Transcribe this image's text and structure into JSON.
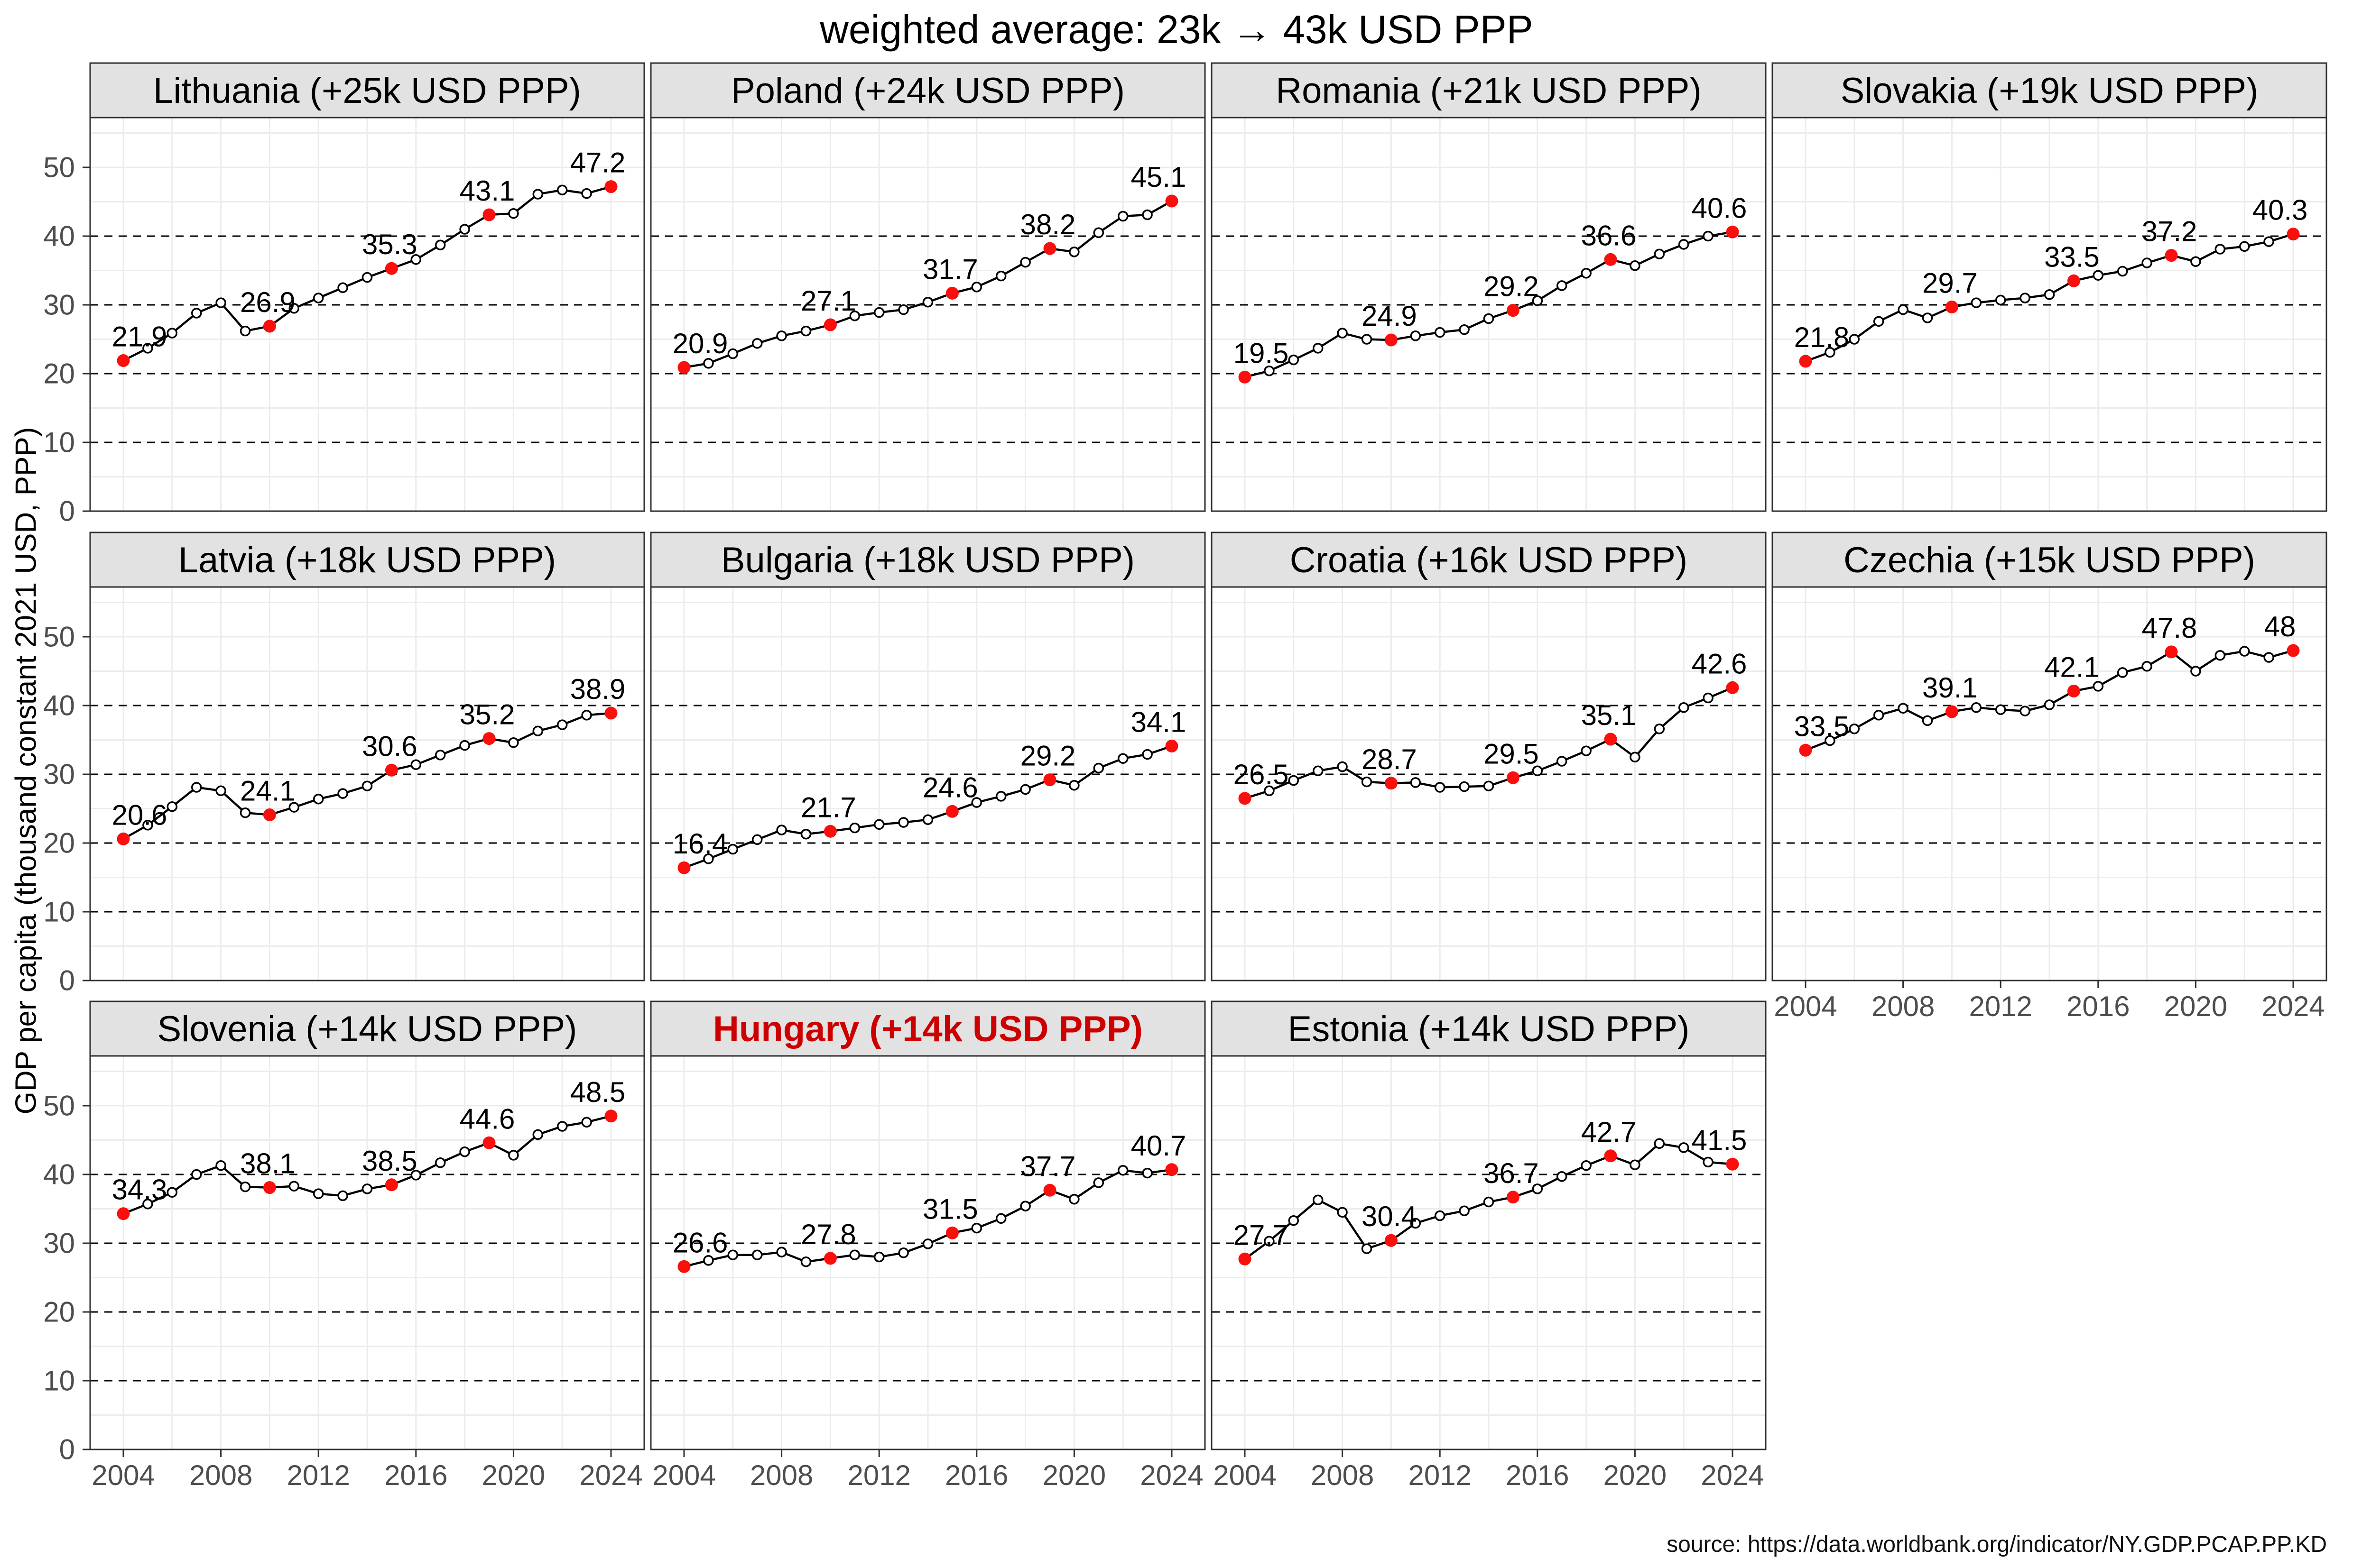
{
  "header": {
    "title": "weighted average: 23k → 43k USD PPP"
  },
  "y_axis": {
    "label": "GDP per capita (thousand constant 2021 USD, PPP)",
    "ticks": [
      0,
      10,
      20,
      30,
      40,
      50
    ],
    "dashed_gridlines": [
      10,
      20,
      30,
      40
    ],
    "minor_gridlines": [
      5,
      15,
      25,
      35,
      45,
      50,
      55
    ]
  },
  "x_axis": {
    "ticks": [
      2004,
      2008,
      2012,
      2016,
      2020,
      2024
    ]
  },
  "footer": {
    "source": "source: https://data.worldbank.org/indicator/NY.GDP.PCAP.PP.KD"
  },
  "colors": {
    "highlight_red": "#cc0000",
    "point_red": "#fb0f0c",
    "header_bg": "#e2e2e2",
    "panel_border": "#2f2f2f",
    "grid": "#ececec",
    "axis_text": "#4d4d4d",
    "line": "#000000"
  },
  "chart_data": {
    "type": "line",
    "ylabel": "GDP per capita (thousand constant 2021 USD, PPP)",
    "ylim": [
      0,
      57
    ],
    "grid": "minor grey solid, black dashed at 10/20/30/40",
    "legend_position": "none",
    "years": [
      2004,
      2005,
      2006,
      2007,
      2008,
      2009,
      2010,
      2011,
      2012,
      2013,
      2014,
      2015,
      2016,
      2017,
      2018,
      2019,
      2020,
      2021,
      2022,
      2023,
      2024
    ],
    "labeled_years": [
      2004,
      2010,
      2015,
      2019,
      2024
    ],
    "panels": [
      {
        "country": "Lithuania",
        "title": "Lithuania (+25k USD PPP)",
        "highlighted": false,
        "values": [
          21.9,
          23.7,
          25.9,
          28.8,
          30.3,
          26.2,
          26.9,
          29.5,
          31.0,
          32.5,
          34.0,
          35.3,
          36.6,
          38.7,
          41.0,
          43.1,
          43.3,
          46.1,
          46.7,
          46.2,
          47.2
        ],
        "point_labels": [
          "21.9",
          "26.9",
          "35.3",
          "43.1",
          "47.2"
        ]
      },
      {
        "country": "Poland",
        "title": "Poland (+24k USD PPP)",
        "highlighted": false,
        "values": [
          20.9,
          21.5,
          22.9,
          24.4,
          25.5,
          26.2,
          27.1,
          28.4,
          28.9,
          29.3,
          30.4,
          31.7,
          32.6,
          34.2,
          36.2,
          38.2,
          37.7,
          40.5,
          42.9,
          43.1,
          45.1
        ],
        "point_labels": [
          "20.9",
          "27.1",
          "31.7",
          "38.2",
          "45.1"
        ]
      },
      {
        "country": "Romania",
        "title": "Romania (+21k USD PPP)",
        "highlighted": false,
        "values": [
          19.5,
          20.4,
          22.0,
          23.7,
          25.9,
          25.0,
          24.9,
          25.5,
          26.0,
          26.4,
          28.0,
          29.2,
          30.6,
          32.8,
          34.6,
          36.6,
          35.7,
          37.4,
          38.8,
          40.0,
          40.6
        ],
        "point_labels": [
          "19.5",
          "24.9",
          "29.2",
          "36.6",
          "40.6"
        ]
      },
      {
        "country": "Slovakia",
        "title": "Slovakia (+19k USD PPP)",
        "highlighted": false,
        "values": [
          21.8,
          23.1,
          25.0,
          27.6,
          29.3,
          28.1,
          29.7,
          30.3,
          30.7,
          31.0,
          31.5,
          33.5,
          34.3,
          34.9,
          36.1,
          37.2,
          36.3,
          38.1,
          38.5,
          39.2,
          40.3
        ],
        "point_labels": [
          "21.8",
          "29.7",
          "33.5",
          "37.2",
          "40.3"
        ]
      },
      {
        "country": "Latvia",
        "title": "Latvia (+18k USD PPP)",
        "highlighted": false,
        "values": [
          20.6,
          22.6,
          25.3,
          28.1,
          27.6,
          24.4,
          24.1,
          25.2,
          26.4,
          27.2,
          28.3,
          30.6,
          31.4,
          32.8,
          34.2,
          35.2,
          34.6,
          36.3,
          37.2,
          38.6,
          38.9
        ],
        "point_labels": [
          "20.6",
          "24.1",
          "30.6",
          "35.2",
          "38.9"
        ]
      },
      {
        "country": "Bulgaria",
        "title": "Bulgaria (+18k USD PPP)",
        "highlighted": false,
        "values": [
          16.4,
          17.7,
          19.1,
          20.5,
          21.9,
          21.3,
          21.7,
          22.2,
          22.7,
          23.0,
          23.4,
          24.6,
          25.9,
          26.8,
          27.8,
          29.2,
          28.4,
          30.9,
          32.3,
          32.9,
          34.1
        ],
        "point_labels": [
          "16.4",
          "21.7",
          "24.6",
          "29.2",
          "34.1"
        ]
      },
      {
        "country": "Croatia",
        "title": "Croatia (+16k USD PPP)",
        "highlighted": false,
        "values": [
          26.5,
          27.6,
          29.1,
          30.5,
          31.1,
          28.9,
          28.7,
          28.8,
          28.1,
          28.2,
          28.3,
          29.5,
          30.5,
          31.9,
          33.4,
          35.1,
          32.5,
          36.6,
          39.7,
          41.1,
          42.6
        ],
        "point_labels": [
          "26.5",
          "28.7",
          "29.5",
          "35.1",
          "42.6"
        ]
      },
      {
        "country": "Czechia",
        "title": "Czechia (+15k USD PPP)",
        "highlighted": false,
        "values": [
          33.5,
          34.9,
          36.6,
          38.6,
          39.6,
          37.8,
          39.1,
          39.7,
          39.4,
          39.2,
          40.1,
          42.1,
          42.8,
          44.8,
          45.7,
          47.8,
          45.0,
          47.3,
          47.9,
          47.0,
          48.0
        ],
        "point_labels": [
          "33.5",
          "39.1",
          "42.1",
          "47.8",
          "48"
        ]
      },
      {
        "country": "Slovenia",
        "title": "Slovenia (+14k USD PPP)",
        "highlighted": false,
        "values": [
          34.3,
          35.7,
          37.4,
          40.0,
          41.3,
          38.2,
          38.1,
          38.3,
          37.2,
          36.9,
          37.9,
          38.5,
          39.9,
          41.7,
          43.3,
          44.6,
          42.8,
          45.8,
          47.0,
          47.6,
          48.5
        ],
        "point_labels": [
          "34.3",
          "38.1",
          "38.5",
          "44.6",
          "48.5"
        ]
      },
      {
        "country": "Hungary",
        "title": "Hungary (+14k USD PPP)",
        "highlighted": true,
        "values": [
          26.6,
          27.5,
          28.3,
          28.3,
          28.7,
          27.3,
          27.8,
          28.3,
          28.0,
          28.6,
          29.9,
          31.5,
          32.2,
          33.6,
          35.4,
          37.7,
          36.4,
          38.8,
          40.6,
          40.2,
          40.7
        ],
        "point_labels": [
          "26.6",
          "27.8",
          "31.5",
          "37.7",
          "40.7"
        ]
      },
      {
        "country": "Estonia",
        "title": "Estonia (+14k USD PPP)",
        "highlighted": false,
        "values": [
          27.7,
          30.3,
          33.3,
          36.3,
          34.5,
          29.2,
          30.4,
          32.9,
          34.0,
          34.7,
          36.0,
          36.7,
          37.9,
          39.7,
          41.3,
          42.7,
          41.4,
          44.5,
          43.9,
          41.8,
          41.5
        ],
        "point_labels": [
          "27.7",
          "30.4",
          "36.7",
          "42.7",
          "41.5"
        ]
      }
    ]
  }
}
